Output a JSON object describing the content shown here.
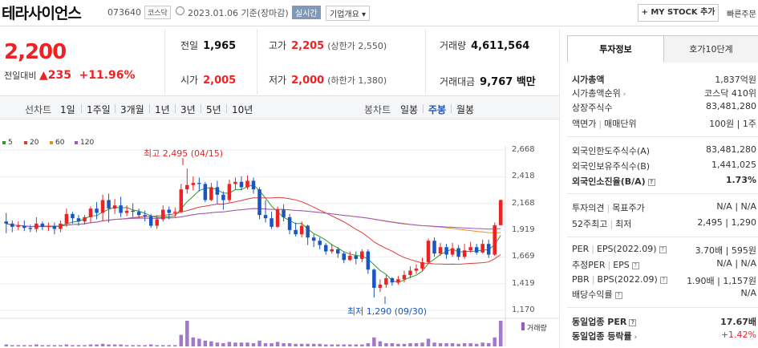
{
  "header": {
    "company_name": "테라사이언스",
    "stock_code": "073640",
    "market_badge": "코스닥",
    "date_text": "2023.01.06 기준(장마감)",
    "realtime_label": "실시간",
    "overview_label": "기업개요 ▾",
    "mystock_label": "+ MY STOCK 추가",
    "quick_label": "빠른주문"
  },
  "quote": {
    "price": "2,200",
    "change_label": "전일대비",
    "change_value": "▲235",
    "change_pct": "+11.96%",
    "prev_label": "전일",
    "prev_value": "1,965",
    "open_label": "시가",
    "open_value": "2,005",
    "high_label": "고가",
    "high_value": "2,205",
    "high_sub": "(상한가 2,550)",
    "low_label": "저가",
    "low_value": "2,000",
    "low_sub": "(하한가 1,380)",
    "volume_label": "거래량",
    "volume_value": "4,611,564",
    "amount_label": "거래대금",
    "amount_value": "9,767 백만"
  },
  "toolbar": {
    "line_label": "선차트",
    "line_ranges": [
      "1일",
      "1주일",
      "3개월",
      "1년",
      "3년",
      "5년",
      "10년"
    ],
    "candle_label": "봉차트",
    "candle_ranges": [
      "일봉",
      "주봉",
      "월봉"
    ],
    "active_candle": "주봉"
  },
  "chart_data": {
    "type": "candlestick",
    "ma_legend": [
      {
        "name": "5",
        "color": "#2a9d2a"
      },
      {
        "name": "20",
        "color": "#e03a3a"
      },
      {
        "name": "60",
        "color": "#f08c1a"
      },
      {
        "name": "120",
        "color": "#9b59c6"
      }
    ],
    "y_ticks": [
      "2,668",
      "2,418",
      "2,168",
      "1,919",
      "1,669",
      "1,419",
      "1,170"
    ],
    "ylim": [
      1170,
      2668
    ],
    "high_annotation": "최고 2,495 (04/15)",
    "low_annotation": "최저 1,290 (09/30)",
    "volume_label": "거래량",
    "candles": [
      [
        2000,
        1980,
        2080,
        1890
      ],
      [
        1980,
        1950,
        2010,
        1900
      ],
      [
        1950,
        1960,
        2000,
        1920
      ],
      [
        1960,
        1940,
        2010,
        1910
      ],
      [
        1940,
        1930,
        1970,
        1900
      ],
      [
        1930,
        1980,
        2040,
        1900
      ],
      [
        1980,
        1950,
        2000,
        1920
      ],
      [
        1950,
        1960,
        1990,
        1910
      ],
      [
        1960,
        1930,
        1990,
        1880
      ],
      [
        1930,
        1980,
        2010,
        1900
      ],
      [
        1980,
        2070,
        2120,
        1950
      ],
      [
        2070,
        2030,
        2090,
        1980
      ],
      [
        2030,
        2000,
        2060,
        1960
      ],
      [
        2000,
        2040,
        2060,
        1970
      ],
      [
        2040,
        2120,
        2140,
        1990
      ],
      [
        2120,
        2080,
        2180,
        2020
      ],
      [
        2080,
        2200,
        2250,
        2000
      ],
      [
        2200,
        2120,
        2260,
        1990
      ],
      [
        2120,
        2150,
        2210,
        2070
      ],
      [
        2150,
        2080,
        2230,
        2040
      ],
      [
        2080,
        2100,
        2150,
        2050
      ],
      [
        2100,
        2090,
        2170,
        2040
      ],
      [
        2090,
        2060,
        2120,
        2030
      ],
      [
        2060,
        2050,
        2100,
        2000
      ],
      [
        2050,
        1960,
        2070,
        1940
      ],
      [
        1960,
        2020,
        2060,
        1930
      ],
      [
        2020,
        2110,
        2150,
        2000
      ],
      [
        2110,
        2080,
        2140,
        2020
      ],
      [
        2080,
        2090,
        2130,
        2040
      ],
      [
        2090,
        2300,
        2350,
        2080
      ],
      [
        2300,
        2340,
        2495,
        2260
      ],
      [
        2340,
        2360,
        2420,
        2290
      ],
      [
        2360,
        2350,
        2410,
        2280
      ],
      [
        2350,
        2200,
        2370,
        2180
      ],
      [
        2200,
        2320,
        2360,
        2190
      ],
      [
        2320,
        2250,
        2380,
        2160
      ],
      [
        2250,
        2200,
        2280,
        2110
      ],
      [
        2200,
        2350,
        2390,
        2180
      ],
      [
        2350,
        2370,
        2410,
        2300
      ],
      [
        2370,
        2320,
        2420,
        2290
      ],
      [
        2320,
        2380,
        2430,
        2300
      ],
      [
        2380,
        2300,
        2410,
        2260
      ],
      [
        2300,
        2060,
        2320,
        2020
      ],
      [
        2060,
        2030,
        2200,
        1990
      ],
      [
        2030,
        1950,
        2090,
        1930
      ],
      [
        1950,
        2110,
        2140,
        1940
      ],
      [
        2110,
        2040,
        2160,
        2000
      ],
      [
        2040,
        1920,
        2070,
        1880
      ],
      [
        1920,
        1880,
        1990,
        1860
      ],
      [
        1880,
        1960,
        2000,
        1850
      ],
      [
        1960,
        1850,
        1970,
        1780
      ],
      [
        1850,
        1820,
        1880,
        1760
      ],
      [
        1820,
        1780,
        1850,
        1740
      ],
      [
        1780,
        1720,
        1800,
        1690
      ],
      [
        1720,
        1740,
        1790,
        1700
      ],
      [
        1740,
        1700,
        1760,
        1660
      ],
      [
        1700,
        1640,
        1720,
        1610
      ],
      [
        1640,
        1680,
        1720,
        1630
      ],
      [
        1680,
        1650,
        1720,
        1600
      ],
      [
        1650,
        1720,
        1740,
        1620
      ],
      [
        1720,
        1550,
        1740,
        1510
      ],
      [
        1550,
        1380,
        1560,
        1290
      ],
      [
        1380,
        1410,
        1460,
        1340
      ],
      [
        1410,
        1470,
        1500,
        1380
      ],
      [
        1470,
        1430,
        1480,
        1400
      ],
      [
        1430,
        1460,
        1490,
        1410
      ],
      [
        1460,
        1500,
        1540,
        1430
      ],
      [
        1500,
        1540,
        1580,
        1470
      ],
      [
        1540,
        1560,
        1600,
        1510
      ],
      [
        1560,
        1620,
        1660,
        1540
      ],
      [
        1620,
        1820,
        1840,
        1600
      ],
      [
        1820,
        1700,
        1850,
        1670
      ],
      [
        1700,
        1760,
        1800,
        1680
      ],
      [
        1760,
        1690,
        1790,
        1650
      ],
      [
        1690,
        1750,
        1800,
        1670
      ],
      [
        1750,
        1670,
        1780,
        1640
      ],
      [
        1670,
        1730,
        1790,
        1650
      ],
      [
        1730,
        1760,
        1810,
        1710
      ],
      [
        1760,
        1710,
        1790,
        1690
      ],
      [
        1710,
        1790,
        1830,
        1700
      ],
      [
        1790,
        1690,
        1830,
        1660
      ],
      [
        1690,
        1965,
        1990,
        1680
      ],
      [
        1965,
        2200,
        2205,
        2000
      ]
    ],
    "volume": [
      3,
      2,
      2,
      2,
      2,
      3,
      2,
      2,
      2,
      2,
      3,
      2,
      2,
      2,
      3,
      3,
      4,
      3,
      3,
      3,
      2,
      2,
      2,
      2,
      3,
      2,
      2,
      2,
      2,
      18,
      40,
      14,
      12,
      9,
      8,
      6,
      5,
      7,
      6,
      6,
      6,
      5,
      9,
      5,
      5,
      7,
      5,
      5,
      4,
      4,
      4,
      4,
      4,
      3,
      3,
      3,
      3,
      3,
      3,
      3,
      5,
      14,
      8,
      5,
      5,
      4,
      4,
      5,
      5,
      6,
      12,
      6,
      5,
      5,
      5,
      4,
      5,
      5,
      4,
      6,
      5,
      14,
      40
    ]
  },
  "side_panel": {
    "tab_active": "투자정보",
    "tab_inactive": "호가10단계",
    "market_cap_label": "시가총액",
    "market_cap_value": "1,837억원",
    "cap_rank_label": "시가총액순위",
    "cap_rank_value": "코스닥 410위",
    "listed_shares_label": "상장주식수",
    "listed_shares_value": "83,481,280",
    "par_label": "액면가",
    "unit_label": "매매단위",
    "par_unit_value": "100원 | 1주",
    "foreign_limit_label": "외국인한도주식수(A)",
    "foreign_limit_value": "83,481,280",
    "foreign_hold_label": "외국인보유주식수(B)",
    "foreign_hold_value": "1,441,025",
    "foreign_ratio_label": "외국인소진율(B/A)",
    "foreign_ratio_value": "1.73%",
    "opinion_label": "투자의견",
    "target_label": "목표주가",
    "opinion_value": "N/A | N/A",
    "wk52_label": "52주최고",
    "wk52_low_label": "최저",
    "wk52_value": "2,495 | 1,290",
    "per_label": "PER",
    "eps_label": "EPS(2022.09)",
    "per_value": "3.70배 | 595원",
    "est_per_label": "추정PER",
    "est_eps_label": "EPS",
    "est_value": "N/A | N/A",
    "pbr_label": "PBR",
    "bps_label": "BPS(2022.09)",
    "pbr_value": "1.90배 | 1,157원",
    "div_label": "배당수익률",
    "div_value": "N/A",
    "sector_per_label": "동일업종 PER",
    "sector_per_value": "17.67배",
    "sector_chg_label": "동일업종 등락률",
    "sector_chg_value": "+1.42%"
  }
}
